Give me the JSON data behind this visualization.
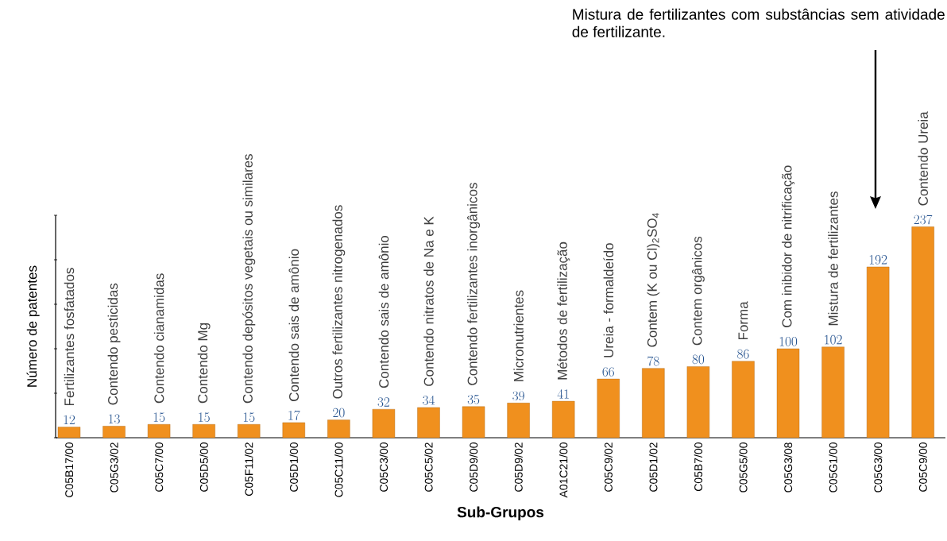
{
  "chart_data": {
    "type": "bar",
    "xlabel": "Sub-Grupos",
    "ylabel": "Número de patentes",
    "categories": [
      "C05B17/00",
      "C05G3/02",
      "C05C7/00",
      "C05D5/00",
      "C05F11/02",
      "C05D1/00",
      "C05C11/00",
      "C05C3/00",
      "C05C5/02",
      "C05D9/00",
      "C05D9/02",
      "A01C21/00",
      "C05C9/02",
      "C05D1/02",
      "C05B7/00",
      "C05G5/00",
      "C05G3/08",
      "C05G1/00",
      "C05G3/00",
      "C05C9/00"
    ],
    "values": [
      12,
      13,
      15,
      15,
      15,
      17,
      20,
      32,
      34,
      35,
      39,
      41,
      66,
      78,
      80,
      86,
      100,
      102,
      192,
      237
    ],
    "color": "#f0901e",
    "data_labels": true,
    "ylim": [
      0,
      250
    ],
    "yticks": [
      {
        "value": 0,
        "label": null
      },
      {
        "value": 50,
        "label": null
      },
      {
        "value": 100,
        "label": null
      },
      {
        "value": 150,
        "label": null
      },
      {
        "value": 200,
        "label": null
      },
      {
        "value": 250,
        "label": null
      }
    ],
    "tick_labels": "x",
    "grid": false,
    "annotations": [
      {
        "text": "Fertilizantes fosfatados",
        "x": "C05B17/00",
        "y": 12
      },
      {
        "text": "Contendo pesticidas",
        "x": "C05G3/02",
        "y": 13
      },
      {
        "text": "Contendo cianamidas",
        "x": "C05C7/00",
        "y": 15
      },
      {
        "text": "Contendo Mg",
        "x": "C05D5/00",
        "y": 15
      },
      {
        "text": "Contendo depósitos vegetais ou similares",
        "x": "C05F11/02",
        "y": 15
      },
      {
        "text": "Contendo sais de amônio",
        "x": "C05D1/00",
        "y": 17
      },
      {
        "text": "Outros fertilizantes nitrogenados",
        "x": "C05C11/00",
        "y": 20
      },
      {
        "text": "Contendo sais de amônio",
        "x": "C05C3/00",
        "y": 32
      },
      {
        "text": "Contendo nitratos de Na e K",
        "x": "C05C5/02",
        "y": 34
      },
      {
        "text": "Contendo fertilizantes inorgânicos",
        "x": "C05D9/00",
        "y": 35
      },
      {
        "text": "Micronutrientes",
        "x": "C05D9/02",
        "y": 39
      },
      {
        "text": "Métodos de fertilização",
        "x": "A01C21/00",
        "y": 41
      },
      {
        "text": "Ureia - formaldeído",
        "x": "C05C9/02",
        "y": 66
      },
      {
        "text": "Contem (K ou Cl)$_{2}$SO$_{4}$",
        "x": "C05D1/02",
        "y": 78
      },
      {
        "text": "Contem orgânicos",
        "x": "C05B7/00",
        "y": 80
      },
      {
        "text": "Forma",
        "x": "C05G5/00",
        "y": 86
      },
      {
        "text": "Com inibidor de nitrificação",
        "x": "C05G3/08",
        "y": 100
      },
      {
        "text": "Mistura de fertilizantes",
        "x": "C05G1/00",
        "y": 102
      },
      {
        "text": "Contendo Ureia",
        "x": "C05C9/00",
        "y": 237
      },
      "Mistura de fertilizantes com substâncias sem atividade de fertilizante."
    ]
  }
}
